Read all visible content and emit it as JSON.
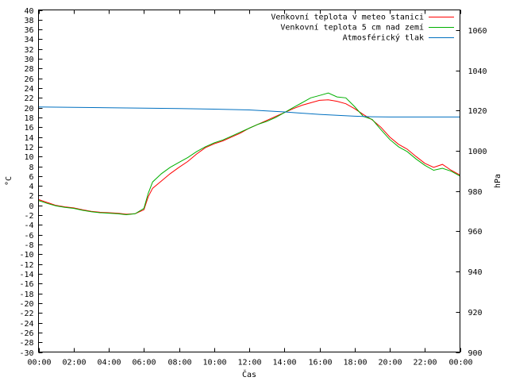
{
  "chart_data": {
    "type": "line",
    "xlabel": "Čas",
    "ylabel_left": "°C",
    "ylabel_right": "hPa",
    "x_ticks": [
      "00:00",
      "02:00",
      "04:00",
      "06:00",
      "08:00",
      "10:00",
      "12:00",
      "14:00",
      "16:00",
      "18:00",
      "20:00",
      "22:00",
      "00:00"
    ],
    "x_range_hours": [
      0,
      24
    ],
    "ylim_left": [
      -30,
      40
    ],
    "ytick_step_left": 2,
    "ylim_right": [
      900,
      1070
    ],
    "yticks_right": [
      900,
      920,
      940,
      960,
      980,
      1000,
      1020,
      1040,
      1060
    ],
    "grid": false,
    "legend_position": "top-right",
    "series": [
      {
        "name": "Venkovní teplota v meteo stanici",
        "color": "#ff0000",
        "axis": "left",
        "x": [
          0,
          0.5,
          1,
          1.5,
          2,
          2.5,
          3,
          3.5,
          4,
          4.5,
          5,
          5.5,
          6,
          6.25,
          6.5,
          7,
          7.5,
          8,
          8.5,
          9,
          9.5,
          10,
          10.5,
          11,
          11.5,
          12,
          12.5,
          13,
          13.5,
          14,
          14.5,
          15,
          15.5,
          16,
          16.5,
          17,
          17.5,
          18,
          18.5,
          19,
          19.5,
          20,
          20.5,
          21,
          21.5,
          22,
          22.5,
          23,
          23.5,
          24
        ],
        "y": [
          1.2,
          0.6,
          0,
          -0.3,
          -0.5,
          -0.9,
          -1.2,
          -1.4,
          -1.5,
          -1.6,
          -1.8,
          -1.7,
          -0.9,
          1.8,
          3.5,
          5.0,
          6.5,
          7.8,
          9.0,
          10.5,
          11.8,
          12.6,
          13.2,
          14.0,
          14.8,
          15.8,
          16.6,
          17.4,
          18.2,
          19.0,
          19.8,
          20.5,
          21.0,
          21.5,
          21.6,
          21.3,
          20.8,
          19.8,
          18.6,
          17.5,
          16.0,
          14.0,
          12.5,
          11.5,
          10.0,
          8.6,
          7.8,
          8.4,
          7.2,
          6.2
        ]
      },
      {
        "name": "Venkovní teplota 5 cm nad zemí",
        "color": "#00b000",
        "axis": "left",
        "x": [
          0,
          0.5,
          1,
          1.5,
          2,
          2.5,
          3,
          3.5,
          4,
          4.5,
          5,
          5.5,
          6,
          6.25,
          6.5,
          7,
          7.5,
          8,
          8.5,
          9,
          9.5,
          10,
          10.5,
          11,
          11.5,
          12,
          12.5,
          13,
          13.5,
          14,
          14.5,
          15,
          15.5,
          16,
          16.5,
          17,
          17.5,
          18,
          18.5,
          19,
          19.5,
          20,
          20.5,
          21,
          21.5,
          22,
          22.5,
          23,
          23.5,
          24
        ],
        "y": [
          1.0,
          0.4,
          -0.1,
          -0.4,
          -0.6,
          -1.0,
          -1.3,
          -1.5,
          -1.6,
          -1.7,
          -1.9,
          -1.7,
          -0.6,
          2.5,
          4.8,
          6.5,
          7.8,
          8.8,
          9.8,
          11.0,
          12.0,
          12.8,
          13.4,
          14.2,
          15.0,
          15.8,
          16.6,
          17.2,
          18.0,
          19.0,
          20.0,
          21.0,
          22.0,
          22.5,
          23.0,
          22.2,
          22.0,
          20.2,
          18.2,
          17.6,
          15.5,
          13.5,
          12.0,
          11.0,
          9.5,
          8.2,
          7.2,
          7.6,
          7.0,
          6.0
        ]
      },
      {
        "name": "Atmosférický tlak",
        "color": "#0070c0",
        "axis": "right",
        "x": [
          0,
          2,
          4,
          6,
          8,
          10,
          12,
          13,
          14,
          15,
          16,
          17,
          18,
          19,
          20,
          21,
          22,
          23,
          24
        ],
        "y": [
          1021.8,
          1021.6,
          1021.4,
          1021.2,
          1021.0,
          1020.7,
          1020.3,
          1019.8,
          1019.3,
          1018.7,
          1018.1,
          1017.6,
          1017.2,
          1016.9,
          1016.8,
          1016.8,
          1016.8,
          1016.8,
          1016.8
        ]
      }
    ]
  }
}
